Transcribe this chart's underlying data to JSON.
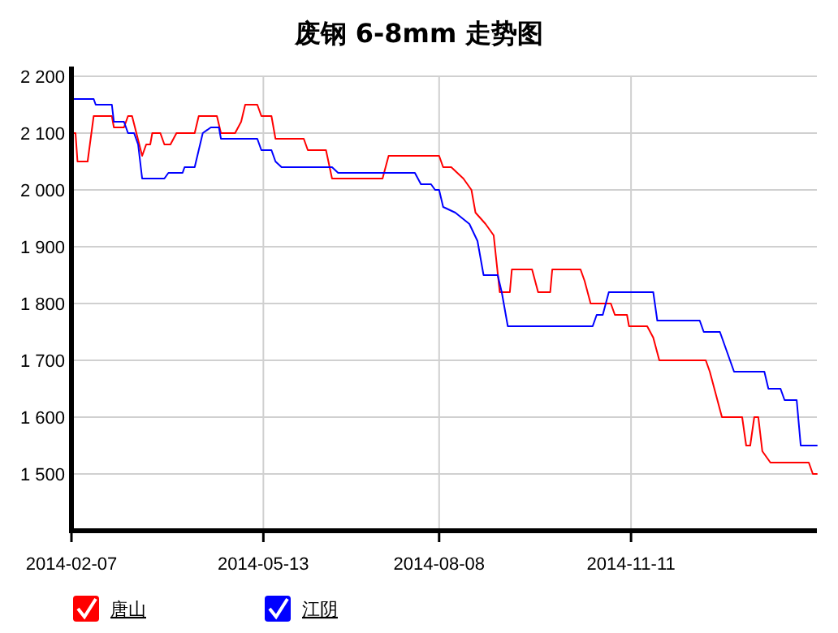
{
  "chart_data": {
    "type": "line",
    "title": "废钢 6-8mm 走势图",
    "xlim": [
      "2014-02-07",
      "2015-02-11"
    ],
    "xticks": [
      "2014-02-07",
      "2014-05-13",
      "2014-08-08",
      "2014-11-11"
    ],
    "ylim": [
      1400,
      2200
    ],
    "yticks": [
      {
        "value": 1500,
        "label": "1 500"
      },
      {
        "value": 1600,
        "label": "1 600"
      },
      {
        "value": 1700,
        "label": "1 700"
      },
      {
        "value": 1800,
        "label": "1 800"
      },
      {
        "value": 1900,
        "label": "1 900"
      },
      {
        "value": 2000,
        "label": "2 000"
      },
      {
        "value": 2100,
        "label": "2 100"
      },
      {
        "value": 2200,
        "label": "2 200"
      }
    ],
    "grid": true,
    "legend": "bottom left",
    "marker": "none",
    "line_style": "solid",
    "series": [
      {
        "name": "唐山",
        "color": "#ff0000",
        "x": [
          "2014-02-07",
          "2014-02-09",
          "2014-02-10",
          "2014-02-15",
          "2014-02-18",
          "2014-02-27",
          "2014-02-28",
          "2014-03-05",
          "2014-03-07",
          "2014-03-09",
          "2014-03-14",
          "2014-03-16",
          "2014-03-18",
          "2014-03-19",
          "2014-03-23",
          "2014-03-25",
          "2014-03-28",
          "2014-03-31",
          "2014-04-09",
          "2014-04-11",
          "2014-04-20",
          "2014-04-22",
          "2014-04-29",
          "2014-05-02",
          "2014-05-04",
          "2014-05-10",
          "2014-05-12",
          "2014-05-17",
          "2014-05-19",
          "2014-06-02",
          "2014-06-04",
          "2014-06-13",
          "2014-06-16",
          "2014-07-11",
          "2014-07-14",
          "2014-08-08",
          "2014-08-10",
          "2014-08-14",
          "2014-08-20",
          "2014-08-24",
          "2014-08-26",
          "2014-08-31",
          "2014-09-04",
          "2014-09-07",
          "2014-09-12",
          "2014-09-13",
          "2014-09-23",
          "2014-09-26",
          "2014-10-02",
          "2014-10-03",
          "2014-10-17",
          "2014-10-19",
          "2014-10-22",
          "2014-11-01",
          "2014-11-03",
          "2014-11-09",
          "2014-11-10",
          "2014-11-19",
          "2014-11-22",
          "2014-11-25",
          "2014-12-18",
          "2014-12-20",
          "2014-12-26",
          "2015-01-05",
          "2015-01-07",
          "2015-01-09",
          "2015-01-11",
          "2015-01-13",
          "2015-01-15",
          "2015-01-19",
          "2015-02-07",
          "2015-02-09",
          "2015-02-11"
        ],
        "values": [
          2100,
          2100,
          2050,
          2050,
          2130,
          2130,
          2110,
          2110,
          2130,
          2130,
          2060,
          2080,
          2080,
          2100,
          2100,
          2080,
          2080,
          2100,
          2100,
          2130,
          2130,
          2100,
          2100,
          2120,
          2150,
          2150,
          2130,
          2130,
          2090,
          2090,
          2070,
          2070,
          2020,
          2020,
          2060,
          2060,
          2040,
          2040,
          2020,
          2000,
          1960,
          1940,
          1920,
          1820,
          1820,
          1860,
          1860,
          1820,
          1820,
          1860,
          1860,
          1840,
          1800,
          1800,
          1780,
          1780,
          1760,
          1760,
          1740,
          1700,
          1700,
          1680,
          1600,
          1600,
          1550,
          1550,
          1600,
          1600,
          1540,
          1520,
          1520,
          1500,
          1500
        ]
      },
      {
        "name": "江阴",
        "color": "#0000ff",
        "x": [
          "2014-02-07",
          "2014-02-18",
          "2014-02-19",
          "2014-02-27",
          "2014-02-28",
          "2014-03-05",
          "2014-03-07",
          "2014-03-10",
          "2014-03-12",
          "2014-03-14",
          "2014-03-25",
          "2014-03-27",
          "2014-04-03",
          "2014-04-04",
          "2014-04-09",
          "2014-04-13",
          "2014-04-17",
          "2014-04-21",
          "2014-04-22",
          "2014-05-10",
          "2014-05-12",
          "2014-05-17",
          "2014-05-19",
          "2014-05-22",
          "2014-06-16",
          "2014-06-19",
          "2014-07-27",
          "2014-07-30",
          "2014-08-04",
          "2014-08-06",
          "2014-08-08",
          "2014-08-10",
          "2014-08-16",
          "2014-08-23",
          "2014-08-27",
          "2014-08-30",
          "2014-09-06",
          "2014-09-08",
          "2014-09-11",
          "2014-10-23",
          "2014-10-25",
          "2014-10-28",
          "2014-10-31",
          "2014-11-22",
          "2014-11-24",
          "2014-12-15",
          "2014-12-17",
          "2014-12-25",
          "2014-12-28",
          "2015-01-01",
          "2015-01-16",
          "2015-01-18",
          "2015-01-24",
          "2015-01-26",
          "2015-02-01",
          "2015-02-03",
          "2015-02-11"
        ],
        "values": [
          2160,
          2160,
          2150,
          2150,
          2120,
          2120,
          2100,
          2100,
          2080,
          2020,
          2020,
          2030,
          2030,
          2040,
          2040,
          2100,
          2110,
          2110,
          2090,
          2090,
          2070,
          2070,
          2050,
          2040,
          2040,
          2030,
          2030,
          2010,
          2010,
          2000,
          2000,
          1970,
          1960,
          1940,
          1910,
          1850,
          1850,
          1820,
          1760,
          1760,
          1780,
          1780,
          1820,
          1820,
          1770,
          1770,
          1750,
          1750,
          1720,
          1680,
          1680,
          1650,
          1650,
          1630,
          1630,
          1550,
          1550
        ]
      }
    ]
  }
}
